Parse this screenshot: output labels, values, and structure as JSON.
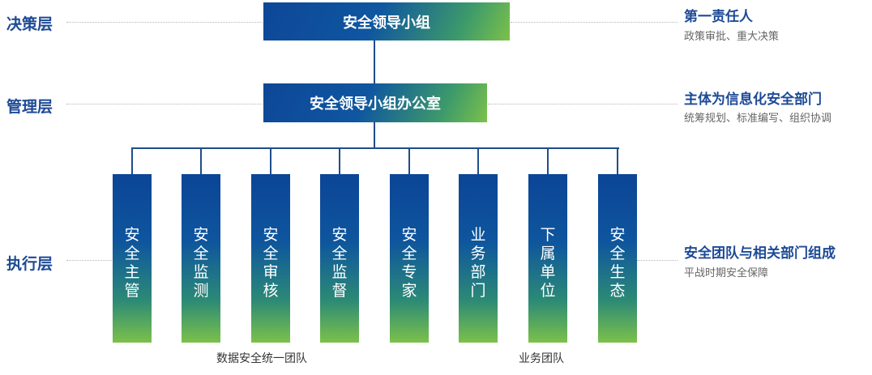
{
  "levels": {
    "decision": "决策层",
    "management": "管理层",
    "execution": "执行层"
  },
  "boxes": {
    "top": "安全领导小组",
    "office": "安全领导小组办公室"
  },
  "columns": [
    "安全主管",
    "安全监测",
    "安全审核",
    "安全监督",
    "安全专家",
    "业务部门",
    "下属单位",
    "安全生态"
  ],
  "right": {
    "decision_title": "第一责任人",
    "decision_sub": "政策审批、重大决策",
    "management_title": "主体为信息化安全部门",
    "management_sub": "统筹规划、标准编写、组织协调",
    "execution_title": "安全团队与相关部门组成",
    "execution_sub": "平战时期安全保障"
  },
  "teams": {
    "data_team": "数据安全统一团队",
    "business_team": "业务团队"
  },
  "colors": {
    "primary": "#1d4a96",
    "gradient_start": "#0d4797",
    "gradient_end": "#7cc14a"
  }
}
